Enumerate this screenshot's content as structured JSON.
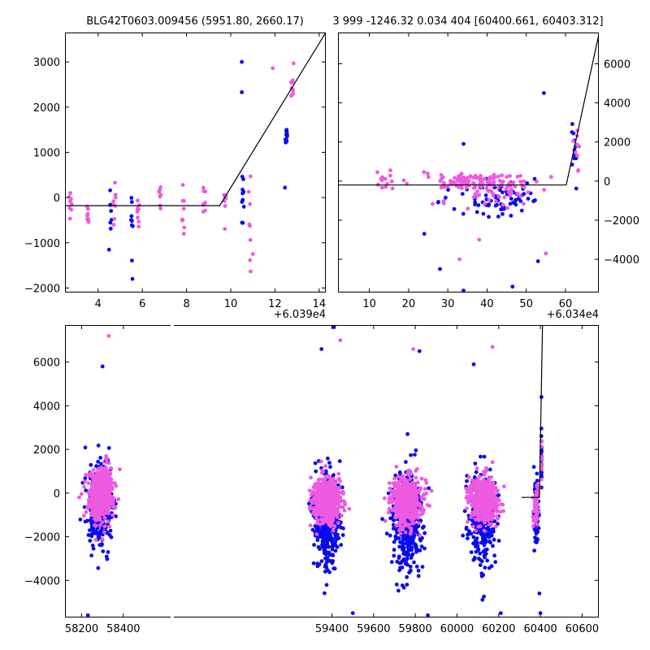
{
  "titles": {
    "left": "BLG42T0603.009456 (5951.80, 2660.17)",
    "right": "3 999 -1246.32 0.034 404 [60400.661, 60403.312]"
  },
  "colors": {
    "blue": "#0a0aee",
    "pink": "#ee5ae0",
    "line": "#000000"
  },
  "chart_data": [
    {
      "id": "zoom-left",
      "type": "scatter",
      "title": "BLG42T0603.009456 (5951.80, 2660.17)",
      "x_offset_label": "+6.039e4",
      "xlim": [
        2.5,
        14.3
      ],
      "ylim": [
        -2100,
        3650
      ],
      "x_ticks": [
        {
          "v": 4,
          "label": "4"
        },
        {
          "v": 6,
          "label": "6"
        },
        {
          "v": 8,
          "label": "8"
        },
        {
          "v": 10,
          "label": "10"
        },
        {
          "v": 12,
          "label": "12"
        },
        {
          "v": 14,
          "label": "14"
        }
      ],
      "y_ticks": [
        {
          "v": -2000,
          "label": "−2000"
        },
        {
          "v": -1000,
          "label": "−1000"
        },
        {
          "v": 0,
          "label": "0"
        },
        {
          "v": 1000,
          "label": "1000"
        },
        {
          "v": 2000,
          "label": "2000"
        },
        {
          "v": 3000,
          "label": "3000"
        }
      ],
      "y_tick_side": "left",
      "fit_line": [
        [
          2.5,
          -180
        ],
        [
          9.5,
          -180
        ],
        [
          14.3,
          3650
        ]
      ],
      "clusters": [
        {
          "x": 2.75,
          "y_lo": -420,
          "y_hi": 160,
          "n": 8,
          "color": "pink"
        },
        {
          "x": 3.55,
          "y_lo": -650,
          "y_hi": 20,
          "n": 8,
          "color": "pink"
        },
        {
          "x": 4.55,
          "y_lo": -850,
          "y_hi": 320,
          "n": 8,
          "color": "blue"
        },
        {
          "x": 4.75,
          "y_lo": -700,
          "y_hi": 80,
          "n": 8,
          "color": "pink"
        },
        {
          "x": 5.55,
          "y_lo": -1000,
          "y_hi": 150,
          "n": 8,
          "color": "blue"
        },
        {
          "x": 5.8,
          "y_lo": -700,
          "y_hi": 300,
          "n": 9,
          "color": "pink"
        },
        {
          "x": 6.8,
          "y_lo": -470,
          "y_hi": 270,
          "n": 8,
          "color": "pink"
        },
        {
          "x": 7.85,
          "y_lo": -760,
          "y_hi": 430,
          "n": 9,
          "color": "pink"
        },
        {
          "x": 8.8,
          "y_lo": -400,
          "y_hi": 240,
          "n": 8,
          "color": "pink"
        },
        {
          "x": 9.75,
          "y_lo": -560,
          "y_hi": 400,
          "n": 9,
          "color": "pink"
        },
        {
          "x": 10.55,
          "y_lo": -600,
          "y_hi": 800,
          "n": 10,
          "color": "blue"
        },
        {
          "x": 10.85,
          "y_lo": -2000,
          "y_hi": 650,
          "n": 10,
          "color": "pink"
        },
        {
          "x": 12.5,
          "y_lo": 900,
          "y_hi": 1700,
          "n": 12,
          "color": "blue"
        },
        {
          "x": 12.8,
          "y_lo": 2100,
          "y_hi": 2850,
          "n": 10,
          "color": "pink"
        }
      ],
      "points": [
        {
          "x": 5.55,
          "y": -1800,
          "color": "blue"
        },
        {
          "x": 10.5,
          "y": 3000,
          "color": "blue"
        },
        {
          "x": 10.5,
          "y": 2330,
          "color": "blue"
        },
        {
          "x": 12.45,
          "y": 220,
          "color": "blue"
        },
        {
          "x": 11.9,
          "y": 2860,
          "color": "pink"
        },
        {
          "x": 11.0,
          "y": -1250,
          "color": "pink"
        }
      ]
    },
    {
      "id": "zoom-right",
      "type": "scatter",
      "title": "3 999 -1246.32 0.034 404 [60400.661, 60403.312]",
      "x_offset_label": "+6.034e4",
      "xlim": [
        2,
        68.5
      ],
      "ylim": [
        -5700,
        7600
      ],
      "x_ticks": [
        {
          "v": 10,
          "label": "10"
        },
        {
          "v": 20,
          "label": "20"
        },
        {
          "v": 30,
          "label": "30"
        },
        {
          "v": 40,
          "label": "40"
        },
        {
          "v": 50,
          "label": "50"
        },
        {
          "v": 60,
          "label": "60"
        }
      ],
      "y_ticks": [
        {
          "v": -4000,
          "label": "−4000"
        },
        {
          "v": -2000,
          "label": "−2000"
        },
        {
          "v": 0,
          "label": "0"
        },
        {
          "v": 2000,
          "label": "2000"
        },
        {
          "v": 4000,
          "label": "4000"
        },
        {
          "v": 6000,
          "label": "6000"
        }
      ],
      "y_tick_side": "right",
      "fit_line": [
        [
          2,
          -200
        ],
        [
          60.2,
          -200
        ],
        [
          68.5,
          7500
        ]
      ],
      "clusters": [
        {
          "x": 36,
          "x_sd": 11,
          "y_lo": -300,
          "y_hi": 300,
          "n": 90,
          "color": "pink"
        },
        {
          "x": 42,
          "x_sd": 10,
          "y_lo": -1700,
          "y_hi": 100,
          "n": 80,
          "color": "blue"
        },
        {
          "x": 40,
          "x_sd": 12,
          "y_lo": -1200,
          "y_hi": 400,
          "n": 60,
          "color": "pink"
        },
        {
          "x": 62.5,
          "x_sd": 0.8,
          "y_lo": 300,
          "y_hi": 3000,
          "n": 14,
          "color": "blue"
        },
        {
          "x": 62.8,
          "x_sd": 0.8,
          "y_lo": 500,
          "y_hi": 2900,
          "n": 10,
          "color": "pink"
        },
        {
          "x": 13,
          "x_sd": 4,
          "y_lo": -600,
          "y_hi": 700,
          "n": 14,
          "color": "pink"
        }
      ],
      "points": [
        {
          "x": 34,
          "y": 1900,
          "color": "blue"
        },
        {
          "x": 54.5,
          "y": 4500,
          "color": "blue"
        },
        {
          "x": 28,
          "y": -4500,
          "color": "blue"
        },
        {
          "x": 34,
          "y": -5600,
          "color": "blue"
        },
        {
          "x": 46.5,
          "y": -5400,
          "color": "blue"
        },
        {
          "x": 53,
          "y": -4100,
          "color": "blue"
        },
        {
          "x": 24,
          "y": -2700,
          "color": "blue"
        },
        {
          "x": 33,
          "y": -4000,
          "color": "pink"
        },
        {
          "x": 38,
          "y": -3000,
          "color": "pink"
        },
        {
          "x": 55,
          "y": -3700,
          "color": "pink"
        }
      ]
    },
    {
      "id": "full-lightcurve",
      "type": "scatter",
      "xlim": [
        58120,
        60680
      ],
      "ylim": [
        -5700,
        7700
      ],
      "x_ticks": [
        {
          "v": 58200,
          "label": "58200"
        },
        {
          "v": 58400,
          "label": "58400"
        },
        {
          "v": 59400,
          "label": "59400"
        },
        {
          "v": 59600,
          "label": "59600"
        },
        {
          "v": 59800,
          "label": "59800"
        },
        {
          "v": 60000,
          "label": "60000"
        },
        {
          "v": 60200,
          "label": "60200"
        },
        {
          "v": 60400,
          "label": "60400"
        },
        {
          "v": 60600,
          "label": "60600"
        }
      ],
      "y_ticks": [
        {
          "v": -4000,
          "label": "−4000"
        },
        {
          "v": -2000,
          "label": "−2000"
        },
        {
          "v": 0,
          "label": "0"
        },
        {
          "v": 2000,
          "label": "2000"
        },
        {
          "v": 4000,
          "label": "4000"
        },
        {
          "v": 6000,
          "label": "6000"
        }
      ],
      "y_tick_side": "left",
      "fit_line": [
        [
          60310,
          -200
        ],
        [
          60395,
          -200
        ],
        [
          60410,
          7700
        ]
      ],
      "clusters": [
        {
          "x": 58290,
          "x_sd": 55,
          "y_lo": -2200,
          "y_hi": 1200,
          "n": 320,
          "color": "blue"
        },
        {
          "x": 59375,
          "x_sd": 60,
          "y_lo": -3200,
          "y_hi": 800,
          "n": 360,
          "color": "blue"
        },
        {
          "x": 59760,
          "x_sd": 65,
          "y_lo": -3500,
          "y_hi": 800,
          "n": 360,
          "color": "blue"
        },
        {
          "x": 60125,
          "x_sd": 60,
          "y_lo": -3000,
          "y_hi": 800,
          "n": 320,
          "color": "blue"
        },
        {
          "x": 60380,
          "x_sd": 12,
          "y_lo": -2200,
          "y_hi": 400,
          "n": 60,
          "color": "blue"
        },
        {
          "x": 60405,
          "x_sd": 1,
          "y_lo": 300,
          "y_hi": 3000,
          "n": 18,
          "color": "blue"
        },
        {
          "x": 58290,
          "x_sd": 55,
          "y_lo": -1200,
          "y_hi": 1000,
          "n": 480,
          "color": "pink"
        },
        {
          "x": 59375,
          "x_sd": 60,
          "y_lo": -1300,
          "y_hi": 600,
          "n": 520,
          "color": "pink"
        },
        {
          "x": 59760,
          "x_sd": 65,
          "y_lo": -1400,
          "y_hi": 600,
          "n": 520,
          "color": "pink"
        },
        {
          "x": 60125,
          "x_sd": 60,
          "y_lo": -1300,
          "y_hi": 600,
          "n": 480,
          "color": "pink"
        },
        {
          "x": 60380,
          "x_sd": 12,
          "y_lo": -1200,
          "y_hi": 300,
          "n": 60,
          "color": "pink"
        },
        {
          "x": 60405,
          "x_sd": 1.2,
          "y_lo": 400,
          "y_hi": 2800,
          "n": 14,
          "color": "pink"
        }
      ],
      "points": [
        {
          "x": 58330,
          "y": 7200,
          "color": "pink"
        },
        {
          "x": 59410,
          "y": 7600,
          "color": "blue"
        },
        {
          "x": 59440,
          "y": 7000,
          "color": "pink"
        },
        {
          "x": 58300,
          "y": 5800,
          "color": "blue"
        },
        {
          "x": 59350,
          "y": 6600,
          "color": "blue"
        },
        {
          "x": 59820,
          "y": 6500,
          "color": "blue"
        },
        {
          "x": 60080,
          "y": 5900,
          "color": "blue"
        },
        {
          "x": 60170,
          "y": 6700,
          "color": "pink"
        },
        {
          "x": 59790,
          "y": 6600,
          "color": "pink"
        },
        {
          "x": 58230,
          "y": -5600,
          "color": "blue"
        },
        {
          "x": 59500,
          "y": -5500,
          "color": "blue"
        },
        {
          "x": 59860,
          "y": -5600,
          "color": "blue"
        },
        {
          "x": 60210,
          "y": -5500,
          "color": "blue"
        },
        {
          "x": 60400,
          "y": -5500,
          "color": "blue"
        },
        {
          "x": 60405,
          "y": 4400,
          "color": "blue"
        },
        {
          "x": 60395,
          "y": -4600,
          "color": "blue"
        }
      ]
    }
  ]
}
